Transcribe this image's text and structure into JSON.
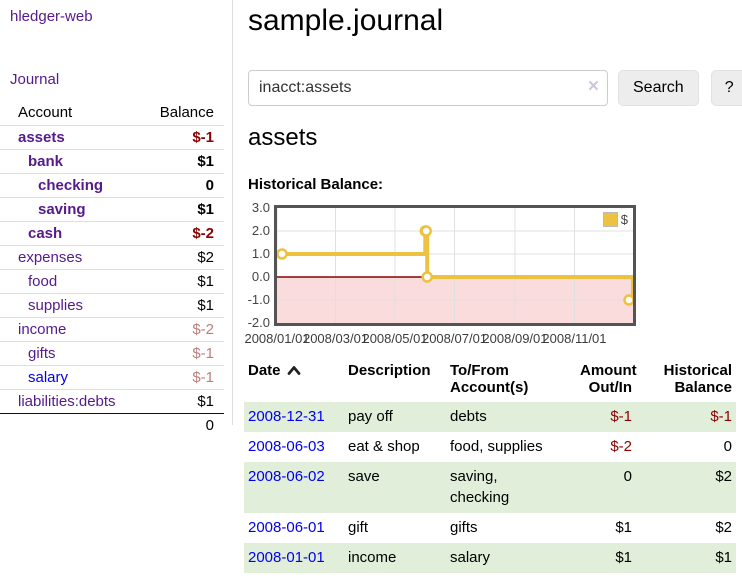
{
  "colors": {
    "visited_link_purple": "#551A8B",
    "link_blue": "#0000EE",
    "negative_red": "#8b0000",
    "negative_soft_red": "#bd7d7d",
    "row_stripe_green": "#e1eeda",
    "series_yellow": "#edc240",
    "negative_region_pink": "#fbdcdc",
    "zero_line_dark_red": "#8b0000"
  },
  "sidebar": {
    "app_title": "hledger-web",
    "journal_link": "Journal",
    "accounts_table": {
      "headers": {
        "account": "Account",
        "balance": "Balance"
      },
      "rows": [
        {
          "name": "assets",
          "level": 1,
          "bold": true,
          "balance": "$-1",
          "balance_style": "negative"
        },
        {
          "name": "bank",
          "level": 2,
          "bold": true,
          "balance": "$1",
          "balance_style": "normal"
        },
        {
          "name": "checking",
          "level": 3,
          "bold": true,
          "balance": "0",
          "balance_style": "normal"
        },
        {
          "name": "saving",
          "level": 3,
          "bold": true,
          "balance": "$1",
          "balance_style": "normal"
        },
        {
          "name": "cash",
          "level": 2,
          "bold": true,
          "balance": "$-2",
          "balance_style": "negative"
        },
        {
          "name": "expenses",
          "level": 1,
          "bold": false,
          "balance": "$2",
          "balance_style": "normal"
        },
        {
          "name": "food",
          "level": 2,
          "bold": false,
          "balance": "$1",
          "balance_style": "normal"
        },
        {
          "name": "supplies",
          "level": 2,
          "bold": false,
          "balance": "$1",
          "balance_style": "normal"
        },
        {
          "name": "income",
          "level": 1,
          "bold": false,
          "balance": "$-2",
          "balance_style": "negative-soft"
        },
        {
          "name": "gifts",
          "level": 2,
          "bold": false,
          "balance": "$-1",
          "balance_style": "negative-soft"
        },
        {
          "name": "salary",
          "level": 2,
          "bold": false,
          "link_style": "blue",
          "balance": "$-1",
          "balance_style": "negative-soft"
        },
        {
          "name": "liabilities:debts",
          "level": 1,
          "bold": false,
          "balance": "$1",
          "balance_style": "normal"
        }
      ],
      "total": "0"
    }
  },
  "main": {
    "title": "sample.journal",
    "search": {
      "query": "inacct:assets",
      "clear_icon": "×",
      "button_label": "Search",
      "help_label": "?"
    },
    "account_heading": "assets",
    "chart_label": "Historical Balance:"
  },
  "chart_data": {
    "type": "line",
    "step": true,
    "title": "Historical Balance",
    "series": [
      {
        "name": "$",
        "color": "#edc240",
        "points": [
          [
            "2008/01/01",
            1
          ],
          [
            "2008/06/01",
            2
          ],
          [
            "2008/06/02",
            2
          ],
          [
            "2008/06/03",
            0
          ],
          [
            "2008/12/31",
            -1
          ]
        ]
      }
    ],
    "xrange": [
      "2008/01/01",
      "2008/12/31"
    ],
    "ylim": [
      -2,
      3
    ],
    "yticks": [
      3.0,
      2.0,
      1.0,
      0.0,
      -1.0,
      -2.0
    ],
    "xticks": [
      "2008/01/01",
      "2008/03/01",
      "2008/05/01",
      "2008/07/01",
      "2008/09/01",
      "2008/11/01"
    ],
    "legend_position": "top-right",
    "grid": true,
    "negative_region_color": "#fbdcdc",
    "zero_line_color": "#8b0000"
  },
  "register": {
    "headers": {
      "date": "Date",
      "description": "Description",
      "accounts": "To/From\nAccount(s)",
      "amount": "Amount\nOut/In",
      "balance": "Historical\nBalance"
    },
    "rows": [
      {
        "date": "2008-12-31",
        "description": "pay off",
        "accounts": "debts",
        "amount": "$-1",
        "balance": "$-1"
      },
      {
        "date": "2008-06-03",
        "description": "eat & shop",
        "accounts": "food, supplies",
        "amount": "$-2",
        "balance": "0"
      },
      {
        "date": "2008-06-02",
        "description": "save",
        "accounts": "saving,\nchecking",
        "amount": "0",
        "balance": "$2"
      },
      {
        "date": "2008-06-01",
        "description": "gift",
        "accounts": "gifts",
        "amount": "$1",
        "balance": "$2"
      },
      {
        "date": "2008-01-01",
        "description": "income",
        "accounts": "salary",
        "amount": "$1",
        "balance": "$1"
      }
    ]
  }
}
